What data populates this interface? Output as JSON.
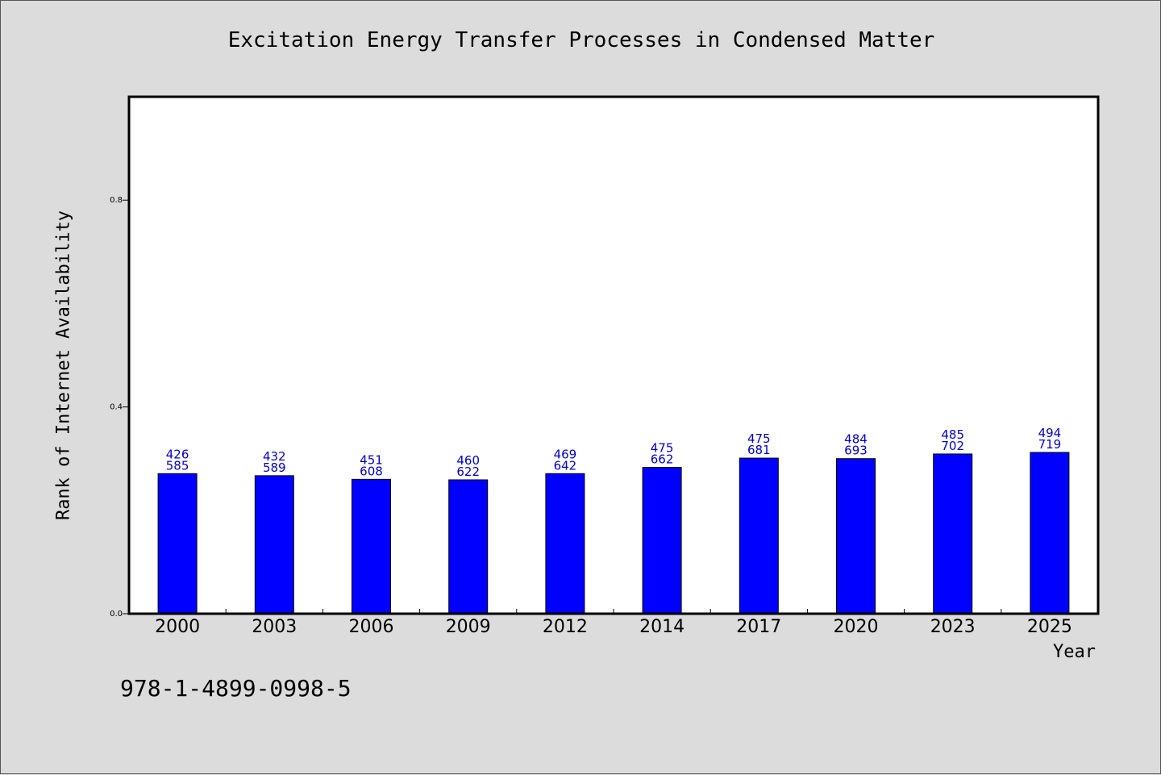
{
  "chart_data": {
    "type": "bar",
    "title": "Excitation Energy Transfer Processes in Condensed Matter",
    "xlabel": "Year",
    "ylabel": "Rank of Internet Availability",
    "categories": [
      "2000",
      "2003",
      "2006",
      "2009",
      "2012",
      "2014",
      "2017",
      "2020",
      "2023",
      "2025"
    ],
    "values": [
      0.271,
      0.267,
      0.26,
      0.259,
      0.271,
      0.283,
      0.301,
      0.3,
      0.309,
      0.312
    ],
    "data_labels": [
      [
        "426",
        "585"
      ],
      [
        "432",
        "589"
      ],
      [
        "451",
        "608"
      ],
      [
        "460",
        "622"
      ],
      [
        "469",
        "642"
      ],
      [
        "475",
        "662"
      ],
      [
        "475",
        "681"
      ],
      [
        "484",
        "693"
      ],
      [
        "485",
        "702"
      ],
      [
        "494",
        "719"
      ]
    ],
    "ylim": [
      0,
      1.0
    ],
    "yticks": [
      "0.0",
      "0.4",
      "0.8"
    ],
    "grid": false,
    "bar_color": "#0000ff",
    "label_color": "#0000cc"
  },
  "footer_text": "978-1-4899-0998-5",
  "colors": {
    "background": "#dcdcdc",
    "plot_background": "#ffffff"
  }
}
